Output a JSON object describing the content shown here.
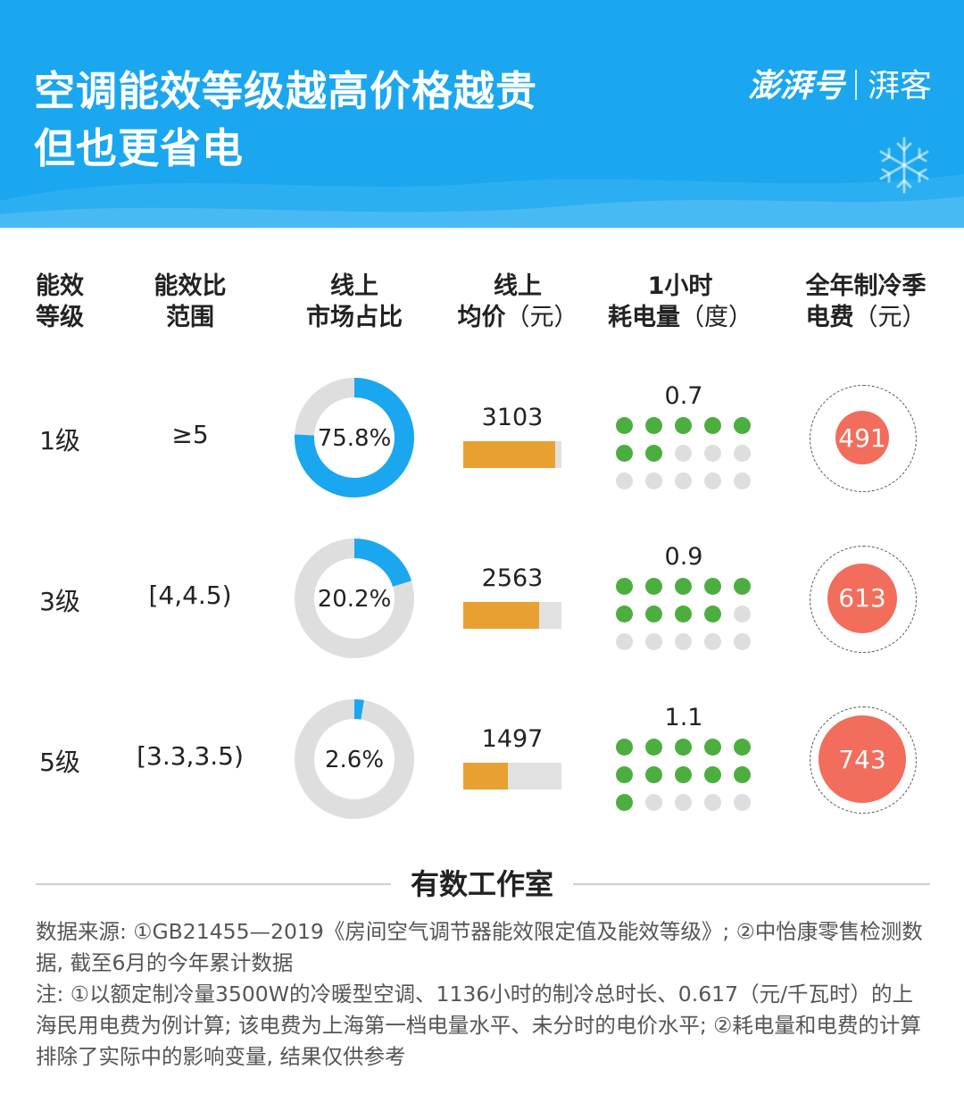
{
  "header": {
    "title_line1": "空调能效等级越高价格越贵",
    "title_line2": "但也更省电",
    "brand_main": "澎湃号",
    "brand_sub": "湃客"
  },
  "columns": {
    "grade": [
      "能效",
      "等级"
    ],
    "ratio": [
      "能效比",
      "范围"
    ],
    "share": [
      "线上",
      "市场占比"
    ],
    "price": [
      "线上",
      "均价",
      "（元）"
    ],
    "kwh": [
      "1小时",
      "耗电量",
      "（度）"
    ],
    "cost": [
      "全年制冷季",
      "电费",
      "（元）"
    ]
  },
  "chart_data": {
    "type": "table",
    "rows": [
      {
        "grade": "1级",
        "ratio_range": "≥5",
        "market_share": 75.8,
        "market_share_label": "75.8%",
        "avg_price": 3103,
        "avg_price_label": "3103",
        "kwh_per_hour": 0.7,
        "kwh_label": "0.7",
        "annual_cost": 491,
        "annual_cost_label": "491"
      },
      {
        "grade": "3级",
        "ratio_range": "[4,4.5)",
        "market_share": 20.2,
        "market_share_label": "20.2%",
        "avg_price": 2563,
        "avg_price_label": "2563",
        "kwh_per_hour": 0.9,
        "kwh_label": "0.9",
        "annual_cost": 613,
        "annual_cost_label": "613"
      },
      {
        "grade": "5级",
        "ratio_range": "[3.3,3.5)",
        "market_share": 2.6,
        "market_share_label": "2.6%",
        "avg_price": 1497,
        "avg_price_label": "1497",
        "kwh_per_hour": 1.1,
        "kwh_label": "1.1",
        "annual_cost": 743,
        "annual_cost_label": "743"
      }
    ],
    "price_bar_max": 3300,
    "kwh_dot_unit": 0.1,
    "kwh_dot_total": 15
  },
  "colors": {
    "header_bg": "#1aa7ef",
    "donut_fill": "#1aa7ef",
    "donut_track": "#dedede",
    "price_bar": "#e8a130",
    "dot_on": "#4cae3f",
    "cost_circle": "#f26d5b"
  },
  "footer": {
    "studio": "有数工作室",
    "notes": [
      "数据来源: ①GB21455—2019《房间空气调节器能效限定值及能效等级》; ②中怡康零售检测数据, 截至6月的今年累计数据",
      "注: ①以额定制冷量3500W的冷暖型空调、1136小时的制冷总时长、0.617（元/千瓦时）的上海民用电费为例计算; 该电费为上海第一档电量水平、未分时的电价水平; ②耗电量和电费的计算排除了实际中的影响变量, 结果仅供参考"
    ]
  },
  "icons": [
    "snowflake-icon"
  ]
}
